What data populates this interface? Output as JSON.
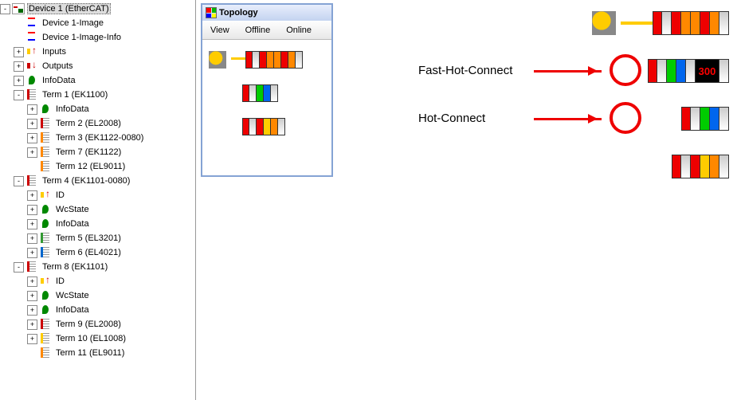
{
  "tree": {
    "root": {
      "label": "Device 1 (EtherCAT)",
      "icon": "ethercat",
      "tw": "-"
    },
    "children": [
      {
        "label": "Device 1-Image",
        "icon": "img",
        "tw": "",
        "indent": 1
      },
      {
        "label": "Device 1-Image-Info",
        "icon": "img",
        "tw": "",
        "indent": 1
      },
      {
        "label": "Inputs",
        "icon": "in",
        "tw": "+",
        "indent": 1
      },
      {
        "label": "Outputs",
        "icon": "out",
        "tw": "+",
        "indent": 1
      },
      {
        "label": "InfoData",
        "icon": "info",
        "tw": "+",
        "indent": 1
      },
      {
        "label": "Term 1 (EK1100)",
        "icon": "term",
        "tw": "-",
        "indent": 1
      },
      {
        "label": "InfoData",
        "icon": "info",
        "tw": "+",
        "indent": 2
      },
      {
        "label": "Term 2 (EL2008)",
        "icon": "term",
        "tw": "+",
        "indent": 2
      },
      {
        "label": "Term 3 (EK1122-0080)",
        "icon": "term-o",
        "tw": "+",
        "indent": 2
      },
      {
        "label": "Term 7 (EK1122)",
        "icon": "term-o",
        "tw": "+",
        "indent": 2
      },
      {
        "label": "Term 12 (EL9011)",
        "icon": "term-o",
        "tw": "",
        "indent": 2
      },
      {
        "label": "Term 4 (EK1101-0080)",
        "icon": "term",
        "tw": "-",
        "indent": 1
      },
      {
        "label": "ID",
        "icon": "in",
        "tw": "+",
        "indent": 2
      },
      {
        "label": "WcState",
        "icon": "info",
        "tw": "+",
        "indent": 2
      },
      {
        "label": "InfoData",
        "icon": "info",
        "tw": "+",
        "indent": 2
      },
      {
        "label": "Term 5 (EL3201)",
        "icon": "term-g",
        "tw": "+",
        "indent": 2
      },
      {
        "label": "Term 6 (EL4021)",
        "icon": "term-b",
        "tw": "+",
        "indent": 2
      },
      {
        "label": "Term 8 (EK1101)",
        "icon": "term",
        "tw": "-",
        "indent": 1
      },
      {
        "label": "ID",
        "icon": "in",
        "tw": "+",
        "indent": 2
      },
      {
        "label": "WcState",
        "icon": "info",
        "tw": "+",
        "indent": 2
      },
      {
        "label": "InfoData",
        "icon": "info",
        "tw": "+",
        "indent": 2
      },
      {
        "label": "Term 9 (EL2008)",
        "icon": "term",
        "tw": "+",
        "indent": 2
      },
      {
        "label": "Term 10 (EL1008)",
        "icon": "term-y",
        "tw": "+",
        "indent": 2
      },
      {
        "label": "Term 11 (EL9011)",
        "icon": "term-o",
        "tw": "",
        "indent": 2
      }
    ]
  },
  "topology_window": {
    "title": "Topology",
    "menu": [
      "View",
      "Offline",
      "Online"
    ],
    "rows": [
      {
        "master": true,
        "slices": [
          "red",
          "gray",
          "red",
          "orange",
          "orange",
          "red",
          "orange",
          "gray"
        ]
      },
      {
        "master": false,
        "slices": [
          "red",
          "gray",
          "green",
          "blue",
          "gray"
        ]
      },
      {
        "master": false,
        "slices": [
          "red",
          "gray",
          "red",
          "yellow",
          "orange",
          "gray"
        ]
      }
    ]
  },
  "rhs_diagram": {
    "rows": [
      {
        "master": true,
        "slices": [
          "red",
          "gray",
          "red",
          "orange",
          "orange",
          "red",
          "orange",
          "gray"
        ],
        "annot": null
      },
      {
        "slices": [
          "red",
          "gray",
          "green",
          "blue",
          "gray"
        ],
        "wide_blk_text": "300",
        "annot": "Fast-Hot-Connect",
        "circle": true
      },
      {
        "slices": [
          "red",
          "gray",
          "green",
          "blue",
          "gray"
        ],
        "annot": "Hot-Connect",
        "circle": true
      },
      {
        "slices": [
          "red",
          "gray",
          "red",
          "yellow",
          "orange",
          "gray"
        ],
        "annot": null
      }
    ],
    "colors": {
      "arrow": "#e00",
      "circle": "#e00",
      "link": "#fc0"
    }
  }
}
